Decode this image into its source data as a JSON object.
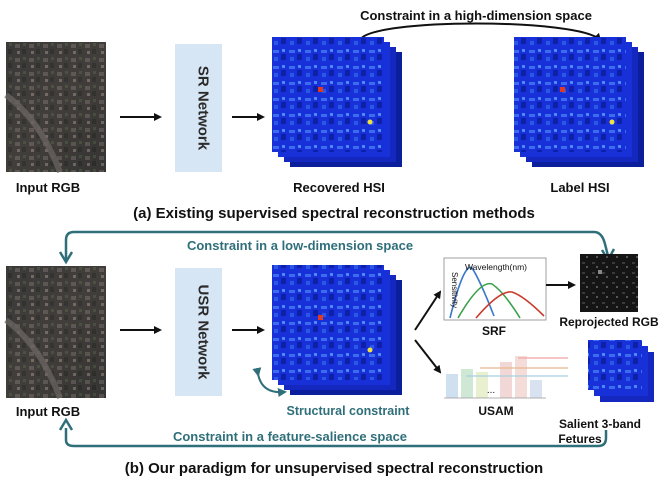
{
  "top": {
    "constraint_text": "Constraint in a high-dimension space",
    "input_label": "Input RGB",
    "network_label": "SR Network",
    "recovered_label": "Recovered HSI",
    "label_hsi": "Label HSI",
    "caption": "(a) Existing supervised spectral reconstruction methods"
  },
  "bottom": {
    "low_constraint_text": "Constraint in a low-dimension space",
    "input_label": "Input RGB",
    "network_label": "USR Network",
    "structural_text": "Structural constraint",
    "feature_constraint_text": "Constraint in a feature-salience space",
    "srf": {
      "sensitivity_label": "Sensitivity",
      "wavelength_label": "Wavelength(nm)",
      "title": "SRF"
    },
    "usam": {
      "ellipsis": "...",
      "title": "USAM"
    },
    "reprojected_label": "Reprojected RGB",
    "salient_label_line1": "Salient 3-band",
    "salient_label_line2": "Fetures",
    "caption": "(b) Our paradigm for unsupervised spectral reconstruction"
  },
  "colors": {
    "teal": "#2f6f7a",
    "network_box": "#d7e6f5",
    "hsi_blue": "#1830d8",
    "srf_blue": "#3a78c9",
    "srf_green": "#3aa14a",
    "srf_red": "#c83a2a"
  }
}
